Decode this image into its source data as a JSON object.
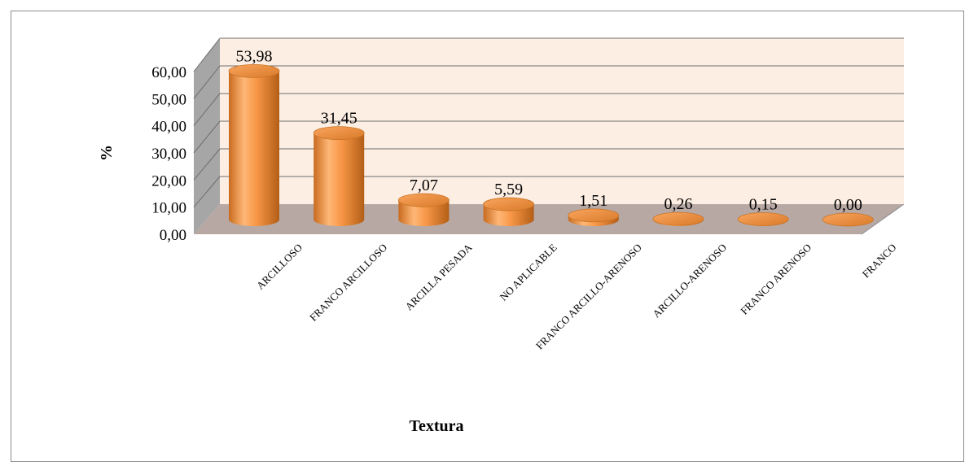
{
  "chart_data": {
    "type": "bar",
    "style": "3d-cylinder",
    "categories": [
      "ARCILLOSO",
      "FRANCO ARCILLOSO",
      "ARCILLA PESADA",
      "NO APLICABLE",
      "FRANCO ARCILLO-ARENOSO",
      "ARCILLO-ARENOSO",
      "FRANCO ARENOSO",
      "FRANCO"
    ],
    "values": [
      53.98,
      31.45,
      7.07,
      5.59,
      1.51,
      0.26,
      0.15,
      0.0
    ],
    "data_labels": [
      "53,98",
      "31,45",
      "7,07",
      "5,59",
      "1,51",
      "0,26",
      "0,15",
      "0,00"
    ],
    "title": "",
    "xlabel": "Textura",
    "ylabel": "%",
    "ylim": [
      0,
      60
    ],
    "yticks": [
      "0,00",
      "10,00",
      "20,00",
      "30,00",
      "40,00",
      "50,00",
      "60,00"
    ],
    "grid": true,
    "legend": "none",
    "colors": {
      "bar_light": "#ffc58a",
      "bar_main": "#f79646",
      "bar_dark": "#b8651c",
      "back_wall": "#fdeee4",
      "side_wall": "#a6a6a6",
      "floor": "#b7a8a4",
      "gridline": "#6d6d6d"
    }
  }
}
